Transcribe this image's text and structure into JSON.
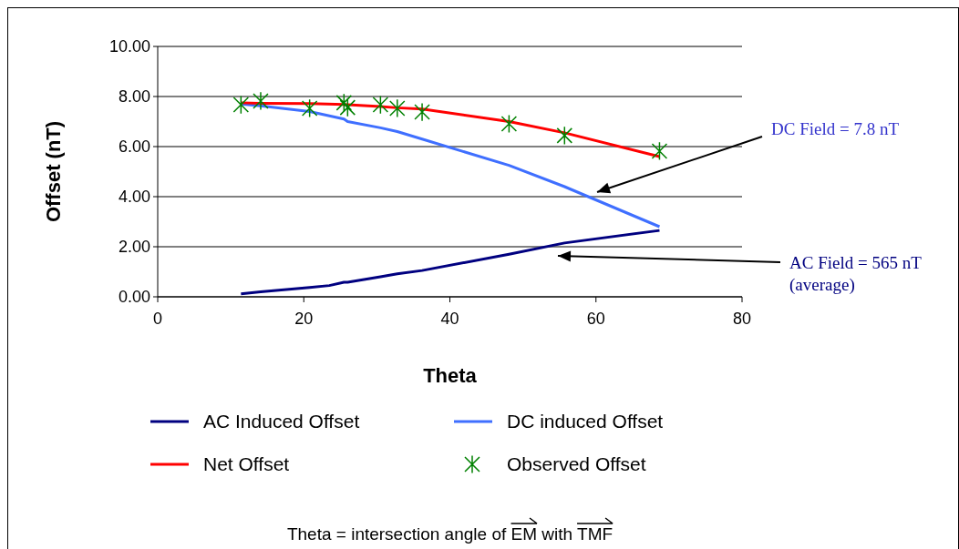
{
  "chart_data": {
    "type": "line",
    "xlabel": "Theta",
    "ylabel": "Offset (nT)",
    "xlim": [
      0,
      80
    ],
    "xticks": [
      0,
      20,
      40,
      60,
      80
    ],
    "ylim": [
      0,
      10
    ],
    "yticks": [
      {
        "value": 0,
        "label": "0.00"
      },
      {
        "value": 2,
        "label": "2.00"
      },
      {
        "value": 4,
        "label": "4.00"
      },
      {
        "value": 6,
        "label": "6.00"
      },
      {
        "value": 8,
        "label": "8.00"
      },
      {
        "value": 10,
        "label": "10.00"
      }
    ],
    "grid": "y",
    "legend": "bottom",
    "series": [
      {
        "name": "AC Induced Offset",
        "color": "#000080",
        "x": [
          11.4,
          14.1,
          20.8,
          23.5,
          25.5,
          26.0,
          30.5,
          32.8,
          36.2,
          48.1,
          55.7,
          68.7
        ],
        "values": [
          0.12,
          0.2,
          0.37,
          0.45,
          0.58,
          0.58,
          0.8,
          0.92,
          1.05,
          1.7,
          2.15,
          2.65
        ]
      },
      {
        "name": "DC induced Offset",
        "color": "#3f6fff",
        "x": [
          11.4,
          14.1,
          20.8,
          25.5,
          26.0,
          30.5,
          32.8,
          36.2,
          48.1,
          55.7,
          56.5,
          68.7
        ],
        "values": [
          7.7,
          7.63,
          7.4,
          7.1,
          7.0,
          6.75,
          6.6,
          6.3,
          5.25,
          4.4,
          4.3,
          2.8
        ]
      },
      {
        "name": "Net Offset",
        "color": "#ff0000",
        "x": [
          11.4,
          14.1,
          20.8,
          25.5,
          26.0,
          30.5,
          32.8,
          36.2,
          48.1,
          55.7,
          68.7
        ],
        "values": [
          7.75,
          7.73,
          7.72,
          7.68,
          7.67,
          7.6,
          7.55,
          7.5,
          7.0,
          6.55,
          5.6
        ]
      },
      {
        "name": "Observed Offset",
        "color": "#008000",
        "type": "scatter",
        "marker": "cross",
        "x": [
          11.4,
          14.1,
          20.8,
          25.5,
          26.0,
          30.5,
          32.8,
          36.2,
          48.1,
          55.7,
          68.7
        ],
        "values": [
          7.67,
          7.82,
          7.53,
          7.75,
          7.56,
          7.67,
          7.53,
          7.38,
          6.91,
          6.44,
          5.82
        ]
      }
    ],
    "annotations": [
      "DC Field = 7.8 nT",
      "AC Field = 565 nT\n(average)",
      "Theta = intersection angle of EM with TMF"
    ]
  }
}
